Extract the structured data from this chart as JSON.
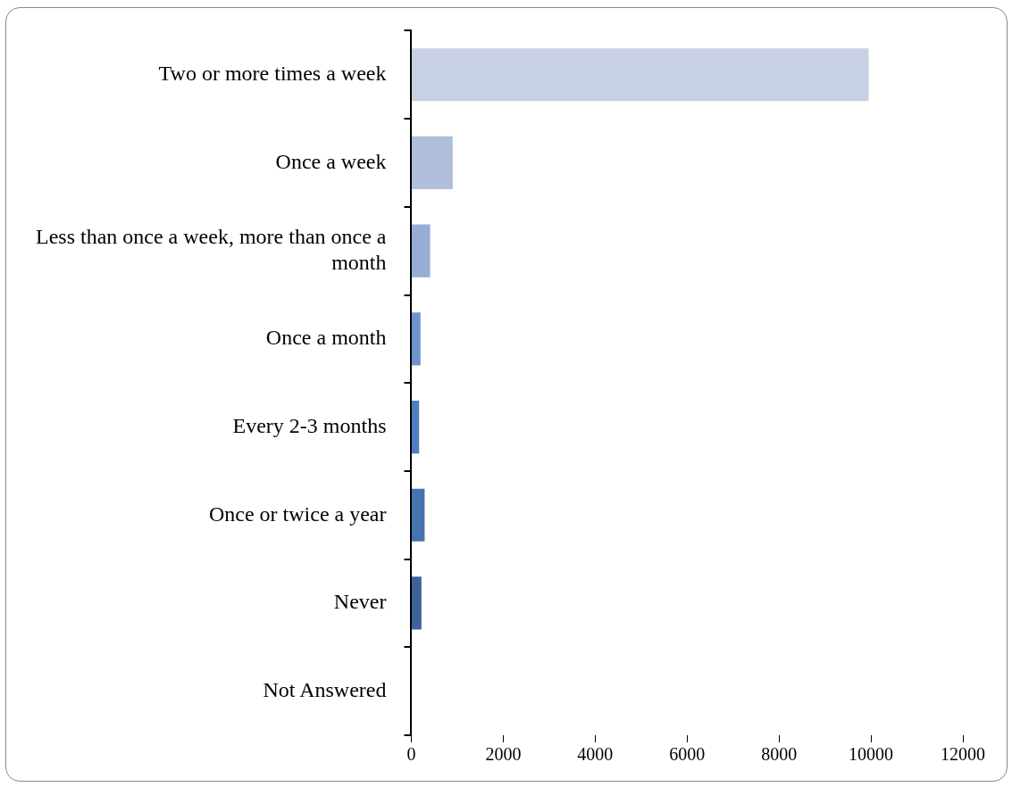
{
  "chart_data": {
    "type": "bar",
    "orientation": "horizontal",
    "categories": [
      "Two or more times a week",
      "Once a week",
      "Less than once a week, more than once a month",
      "Once a month",
      "Every 2-3 months",
      "Once or twice a year",
      "Never",
      "Not Answered"
    ],
    "values": [
      9950,
      900,
      410,
      200,
      170,
      290,
      220,
      10
    ],
    "colors": [
      "#c8d1e3",
      "#afbfdb",
      "#98add5",
      "#6f93cc",
      "#4f7ec0",
      "#4573ae",
      "#3d6399",
      "#1f3b63"
    ],
    "xlim": [
      0,
      12000
    ],
    "xticks": [
      0,
      2000,
      4000,
      6000,
      8000,
      10000,
      12000
    ],
    "grid": false,
    "legend": false
  }
}
